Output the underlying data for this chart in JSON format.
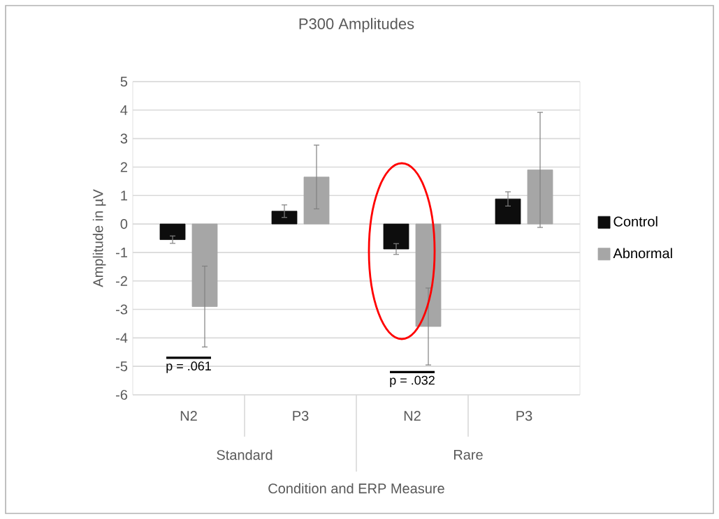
{
  "chart_data": {
    "type": "bar",
    "title": "P300 Amplitudes",
    "xlabel": "Condition and ERP Measure",
    "ylabel": "Amplitude in µV",
    "categories": [
      "N2",
      "P3",
      "N2",
      "P3"
    ],
    "series": [
      {
        "name": "Control",
        "color": "#0d0d0d",
        "values": [
          -0.55,
          0.45,
          -0.88,
          0.88
        ],
        "errors": [
          0.13,
          0.22,
          0.19,
          0.25
        ]
      },
      {
        "name": "Abnormal",
        "color": "#a6a6a6",
        "values": [
          -2.9,
          1.65,
          -3.6,
          1.9
        ],
        "errors": [
          1.42,
          1.12,
          1.35,
          2.02
        ]
      }
    ],
    "annotations": [
      "Standard",
      "Rare",
      "p = .061",
      "p = .032"
    ],
    "ylim": [
      -6,
      5
    ],
    "yticks": [
      -6,
      -5,
      -4,
      -3,
      -2,
      -1,
      0,
      1,
      2,
      3,
      4,
      5
    ],
    "grid": "y",
    "legend": "right"
  }
}
